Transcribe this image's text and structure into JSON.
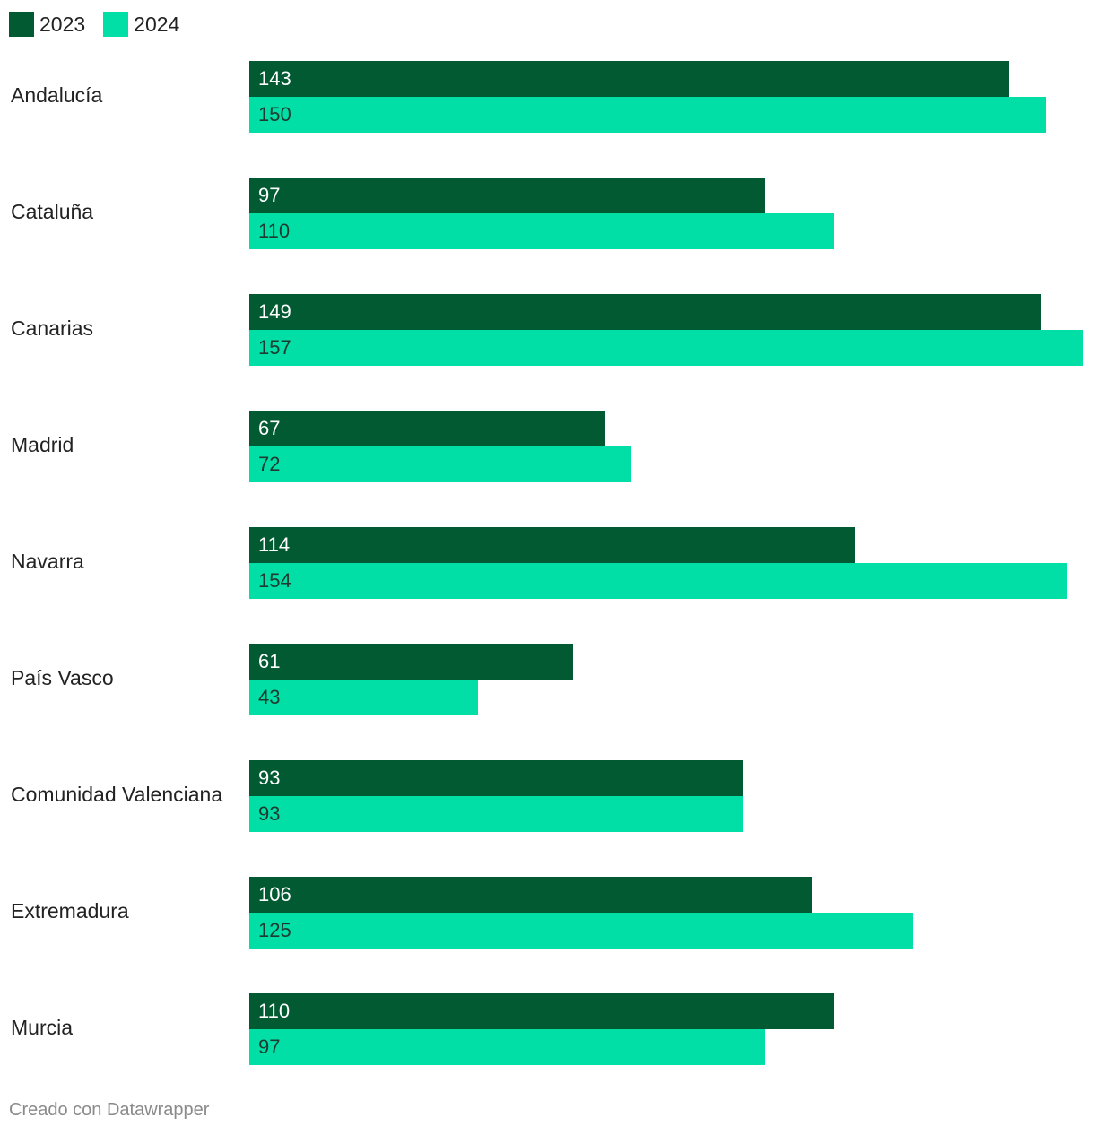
{
  "legend": [
    {
      "label": "2023",
      "color": "#015a31"
    },
    {
      "label": "2024",
      "color": "#01dea6"
    }
  ],
  "footer": {
    "text": "Creado con Datawrapper"
  },
  "chart_data": {
    "type": "bar",
    "orientation": "horizontal",
    "categories": [
      "Andalucía",
      "Cataluña",
      "Canarias",
      "Madrid",
      "Navarra",
      "País Vasco",
      "Comunidad Valenciana",
      "Extremadura",
      "Murcia"
    ],
    "series": [
      {
        "name": "2023",
        "color": "#015a31",
        "label_color": "#ffffff",
        "values": [
          143,
          97,
          149,
          67,
          114,
          61,
          93,
          106,
          110
        ]
      },
      {
        "name": "2024",
        "color": "#01dea6",
        "label_color": "#1f3a30",
        "values": [
          150,
          110,
          157,
          72,
          154,
          43,
          93,
          125,
          97
        ]
      }
    ],
    "xlim": [
      0,
      157
    ],
    "grid": false,
    "legend_position": "top-left",
    "data_labels": "inside-left"
  }
}
